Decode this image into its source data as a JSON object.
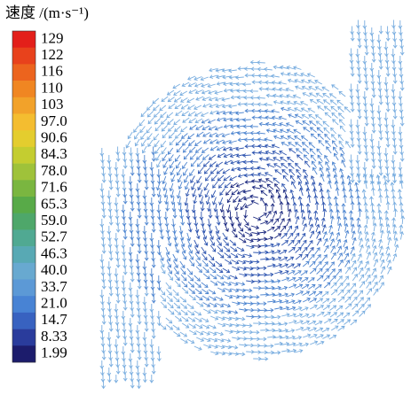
{
  "legend": {
    "title": "速度 /(m·s⁻¹)",
    "labels": [
      "129",
      "122",
      "116",
      "110",
      "103",
      "97.0",
      "90.6",
      "84.3",
      "78.0",
      "71.6",
      "65.3",
      "59.0",
      "52.7",
      "46.3",
      "40.0",
      "33.7",
      "21.0",
      "14.7",
      "8.33",
      "1.99"
    ],
    "colors": [
      "#e31f1a",
      "#e8421c",
      "#ec641e",
      "#f08622",
      "#f2a22a",
      "#f4bd30",
      "#e4cd2e",
      "#c4cd30",
      "#9fc23a",
      "#7ab640",
      "#58aa48",
      "#4ea76a",
      "#50a992",
      "#58a9b4",
      "#68a9d0",
      "#5c99d6",
      "#4883d4",
      "#3862c0",
      "#2a3c9c",
      "#1c1c6c"
    ]
  }
}
